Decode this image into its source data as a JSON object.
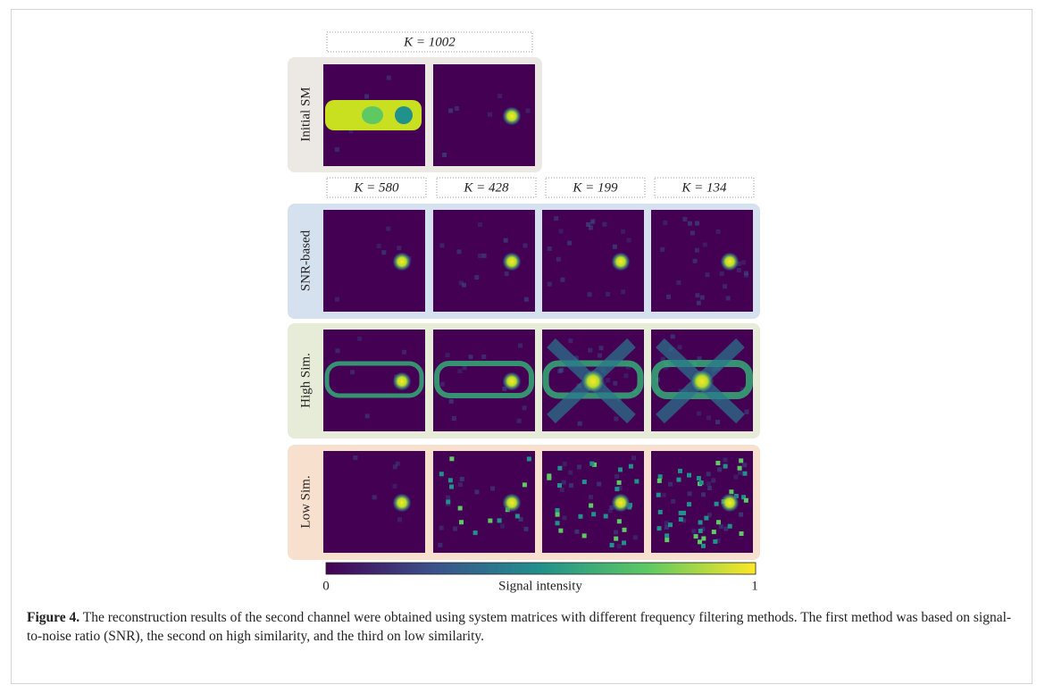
{
  "figure": {
    "initial": {
      "k_label": "K = 1002",
      "row_label": "Initial SM"
    },
    "k_labels": [
      "K = 580",
      "K = 428",
      "K = 199",
      "K = 134"
    ],
    "rows": [
      {
        "label": "SNR-based"
      },
      {
        "label": "High Sim."
      },
      {
        "label": "Low Sim."
      }
    ],
    "colorbar": {
      "min_label": "0",
      "title": "Signal intensity",
      "max_label": "1"
    }
  },
  "caption": {
    "label": "Figure 4.",
    "text": "The reconstruction results of the second channel were obtained using system matrices with different frequency filtering methods. The first method was based on signal-to-noise ratio (SNR), the second on high similarity, and the third on low similarity."
  }
}
